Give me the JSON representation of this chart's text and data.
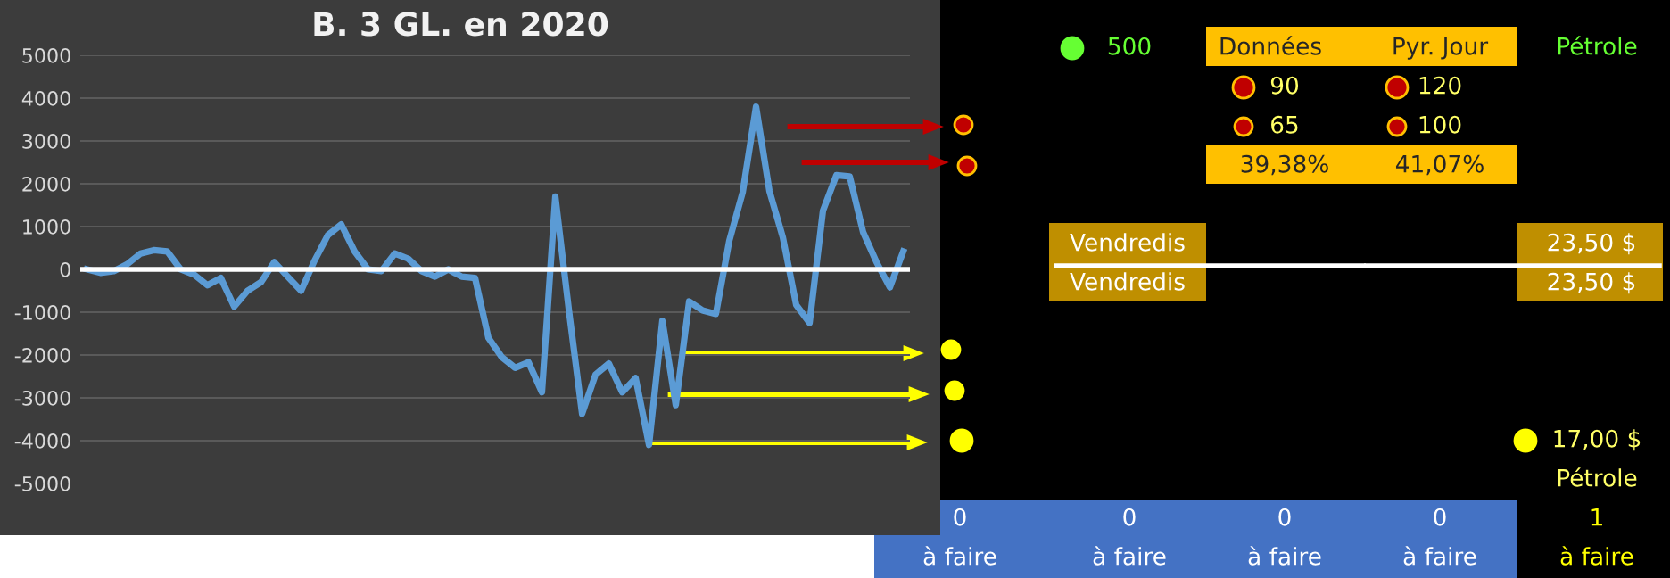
{
  "chart_data": {
    "type": "line",
    "title": "B. 3 GL. en 2020",
    "categories": [
      null,
      null,
      null,
      null,
      null,
      null,
      null,
      null,
      null,
      null,
      null,
      null,
      null,
      null,
      null,
      null,
      null,
      null,
      null,
      null,
      null,
      null,
      null,
      null,
      null,
      null,
      null,
      null,
      null,
      null,
      null,
      null,
      null,
      null,
      null,
      null,
      null,
      null,
      null,
      null,
      null,
      null,
      null,
      null,
      null,
      null,
      null,
      null,
      null,
      null,
      null,
      null,
      null,
      null,
      null,
      null,
      null,
      null,
      null,
      null,
      null,
      null
    ],
    "series": [
      {
        "color": "#5b9bd5",
        "values": [
          0,
          -80,
          -40,
          120,
          370,
          450,
          420,
          0,
          -120,
          -370,
          -200,
          -870,
          -500,
          -300,
          170,
          -170,
          -500,
          200,
          800,
          1050,
          420,
          0,
          -40,
          370,
          250,
          -40,
          -170,
          0,
          -170,
          -200,
          -1600,
          -2050,
          -2300,
          -2170,
          -2870,
          1700,
          -920,
          -3370,
          -2460,
          -2200,
          -2870,
          -2540,
          -4100,
          -1200,
          -3170,
          -750,
          -960,
          -1040,
          670,
          1800,
          3800,
          1830,
          750,
          -830,
          -1250,
          1370,
          2200,
          2170,
          870,
          170,
          -420,
          420
        ]
      }
    ],
    "ylim": [
      -5000,
      5000
    ],
    "yticks": [
      -5000,
      -4000,
      -3000,
      -2000,
      -1000,
      0,
      1000,
      2000,
      3000,
      4000,
      5000
    ],
    "grid": "y",
    "tick_labels": "y",
    "marker": "none",
    "line_style": "solid",
    "ref_lines": [
      {
        "axis": "y",
        "value": 0,
        "color": "#ffffff"
      }
    ],
    "annotations": [
      "500",
      "Données",
      "Pyr. Jour",
      "Pétrole",
      "90",
      "120",
      "65",
      "100",
      "39,38%",
      "41,07%",
      "Vendredis",
      "Vendredis",
      "23,50 $",
      "23,50 $",
      "17,00 $",
      "Pétrole",
      "0",
      "0",
      "0",
      "0",
      "1",
      "à faire",
      "à faire",
      "à faire",
      "à faire",
      "à faire"
    ]
  }
}
